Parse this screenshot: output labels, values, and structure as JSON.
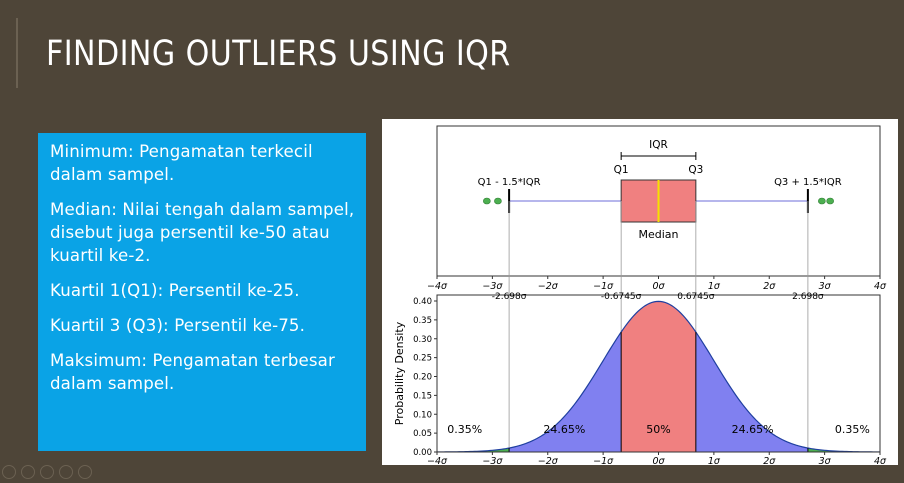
{
  "slide": {
    "title": "FINDING OUTLIERS USING IQR"
  },
  "definitions": [
    "Minimum: Pengamatan terkecil dalam sampel.",
    "Median: Nilai tengah dalam sampel, disebut juga persentil ke-50 atau kuartil ke-2.",
    "Kuartil 1(Q1): Persentil ke-25.",
    "Kuartil 3 (Q3): Persentil ke-75.",
    "Maksimum: Pengamatan terbesar dalam sampel."
  ],
  "colors": {
    "background": "#4e4538",
    "info_box": "#0aa3e6",
    "iqr_fill": "#f08080",
    "tail_fill": "#8080f0",
    "outlier_fill": "#4caf50",
    "median_line": "#f5e000"
  },
  "chart_data": [
    {
      "type": "box",
      "labels": {
        "iqr": "IQR",
        "q1": "Q1",
        "q3": "Q3",
        "lower_fence": "Q1 - 1.5*IQR",
        "upper_fence": "Q3 + 1.5*IQR",
        "median": "Median"
      },
      "q1": -0.6745,
      "median": 0,
      "q3": 0.6745,
      "lower_whisker": -2.698,
      "upper_whisker": 2.698,
      "outliers": [
        -3.1,
        -2.9,
        2.95,
        3.1
      ],
      "xlim": [
        -4,
        4
      ],
      "xticks": [
        "−4σ",
        "−3σ",
        "−2σ",
        "−1σ",
        "0σ",
        "1σ",
        "2σ",
        "3σ",
        "4σ"
      ]
    },
    {
      "type": "area",
      "ylabel": "Probability Density",
      "xlim": [
        -4,
        4
      ],
      "ylim": [
        0,
        0.4
      ],
      "yticks": [
        "0.00",
        "0.05",
        "0.10",
        "0.15",
        "0.20",
        "0.25",
        "0.30",
        "0.35",
        "0.40"
      ],
      "xticks": [
        "−4σ",
        "−3σ",
        "−2σ",
        "−1σ",
        "0σ",
        "1σ",
        "2σ",
        "3σ",
        "4σ"
      ],
      "boundaries": [
        -2.698,
        -0.6745,
        0.6745,
        2.698
      ],
      "boundary_labels": [
        "-2.698σ",
        "-0.6745σ",
        "0.6745σ",
        "2.698σ"
      ],
      "regions": [
        {
          "label": "0.35%",
          "from": -4,
          "to": -2.698
        },
        {
          "label": "24.65%",
          "from": -2.698,
          "to": -0.6745
        },
        {
          "label": "50%",
          "from": -0.6745,
          "to": 0.6745
        },
        {
          "label": "24.65%",
          "from": 0.6745,
          "to": 2.698
        },
        {
          "label": "0.35%",
          "from": 2.698,
          "to": 4
        }
      ]
    }
  ]
}
